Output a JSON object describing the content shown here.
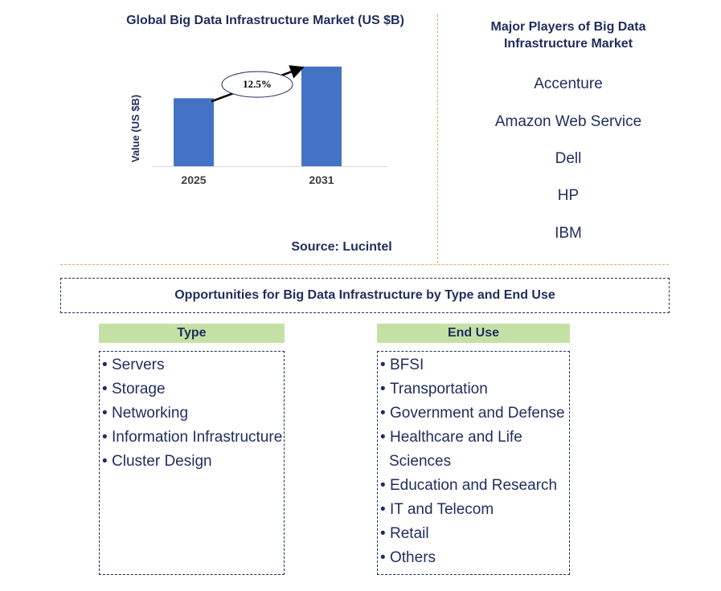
{
  "chart_data": {
    "type": "bar",
    "title": "Global Big Data Infrastructure Market (US $B)",
    "ylabel": "Value (US $B)",
    "xlabel": "",
    "categories": [
      "2025",
      "2031"
    ],
    "values": [
      58,
      85
    ],
    "ylim": [
      0,
      100
    ],
    "annotation": "12.5%",
    "colors": {
      "bar": "#4472c4",
      "text": "#1f2d5c",
      "axis_text": "#404040"
    }
  },
  "source": "Source: Lucintel",
  "players": {
    "title": "Major Players of Big Data Infrastructure Market",
    "items": [
      "Accenture",
      "Amazon Web Service",
      "Dell",
      "HP",
      "IBM"
    ]
  },
  "opportunities": {
    "title": "Opportunities for Big Data Infrastructure by Type and End Use",
    "type": {
      "header": "Type",
      "items": [
        "Servers",
        "Storage",
        "Networking",
        "Information Infrastructure",
        "Cluster Design"
      ]
    },
    "end_use": {
      "header": "End Use",
      "items": [
        "BFSI",
        "Transportation",
        "Government and Defense",
        "Healthcare and Life",
        "Sciences",
        "Education and Research",
        "IT and Telecom",
        "Retail",
        "Others"
      ]
    }
  }
}
